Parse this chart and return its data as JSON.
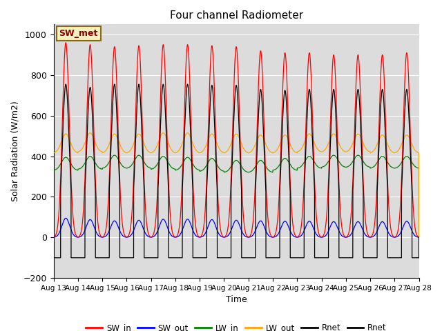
{
  "title": "Four channel Radiometer",
  "xlabel": "Time",
  "ylabel": "Solar Radiation (W/m2)",
  "ylim": [
    -200,
    1050
  ],
  "background_color": "#dcdcdc",
  "annotation_text": "SW_met",
  "annotation_bg": "#f5f0c0",
  "annotation_border": "#8B6914",
  "legend_entries": [
    "SW_in",
    "SW_out",
    "LW_in",
    "LW_out",
    "Rnet",
    "Rnet"
  ],
  "legend_colors": [
    "red",
    "blue",
    "green",
    "orange",
    "black",
    "black"
  ],
  "yticks": [
    -200,
    0,
    200,
    400,
    600,
    800,
    1000
  ],
  "xtick_labels": [
    "Aug 13",
    "Aug 14",
    "Aug 15",
    "Aug 16",
    "Aug 17",
    "Aug 18",
    "Aug 19",
    "Aug 20",
    "Aug 21",
    "Aug 22",
    "Aug 23",
    "Aug 24",
    "Aug 25",
    "Aug 26",
    "Aug 27",
    "Aug 28"
  ],
  "num_days": 15,
  "SW_in_peaks": [
    960,
    950,
    940,
    945,
    950,
    950,
    945,
    940,
    920,
    910,
    910,
    900,
    900,
    900,
    910
  ],
  "SW_out_peaks": [
    95,
    88,
    82,
    85,
    90,
    90,
    88,
    85,
    82,
    80,
    80,
    78,
    78,
    78,
    80
  ],
  "LW_in_bases": [
    330,
    335,
    340,
    340,
    335,
    330,
    325,
    320,
    320,
    330,
    340,
    345,
    345,
    340,
    340
  ],
  "LW_in_peak_adds": [
    65,
    65,
    65,
    65,
    65,
    65,
    65,
    60,
    60,
    60,
    60,
    60,
    60,
    60,
    60
  ],
  "LW_out_bases": [
    415,
    420,
    415,
    415,
    415,
    415,
    415,
    415,
    415,
    415,
    420,
    420,
    420,
    415,
    415
  ],
  "LW_out_peak_adds": [
    95,
    95,
    95,
    95,
    100,
    100,
    95,
    95,
    90,
    90,
    90,
    90,
    90,
    90,
    90
  ],
  "Rnet_peaks": [
    755,
    740,
    755,
    755,
    755,
    755,
    750,
    750,
    730,
    725,
    730,
    730,
    730,
    730,
    730
  ],
  "Rnet_night": -100
}
